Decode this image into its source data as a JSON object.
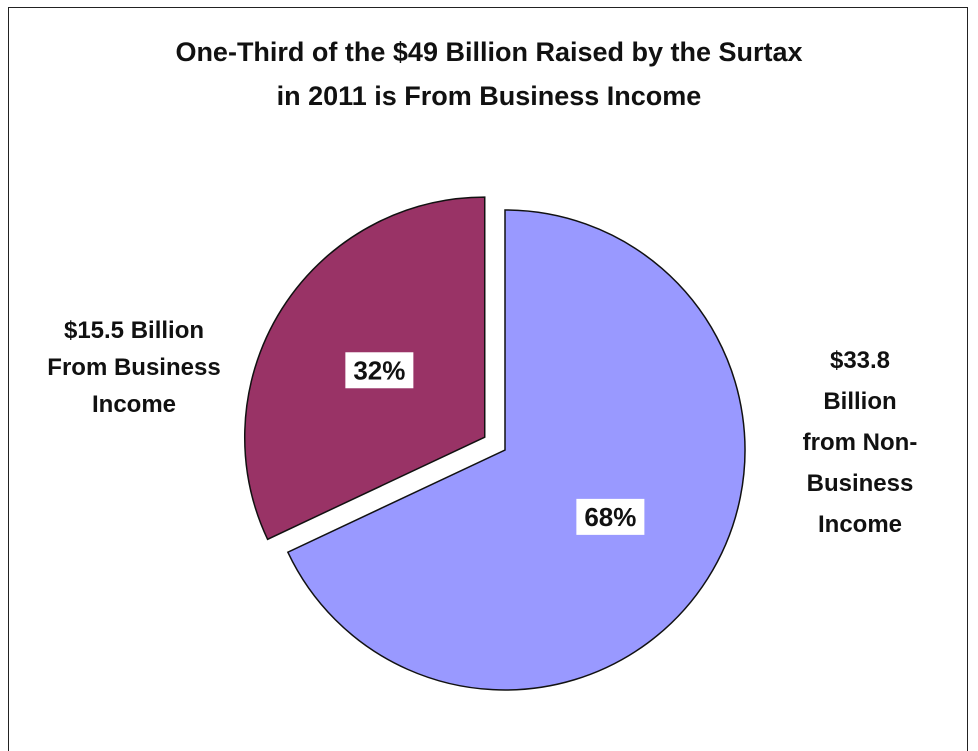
{
  "chart_data": {
    "type": "pie",
    "title_lines": [
      "One-Third of the $49 Billion Raised by the Surtax",
      "in 2011 is From Business Income"
    ],
    "slices": [
      {
        "value": 32,
        "pct_label": "32%",
        "label_lines": [
          "$15.5 Billion",
          "From Business",
          "Income"
        ],
        "color": "#993366",
        "exploded": true
      },
      {
        "value": 68,
        "pct_label": "68%",
        "label_lines": [
          "$33.8",
          "Billion",
          "from Non-",
          "Business",
          "Income"
        ],
        "color": "#9999ff",
        "exploded": false
      }
    ]
  }
}
